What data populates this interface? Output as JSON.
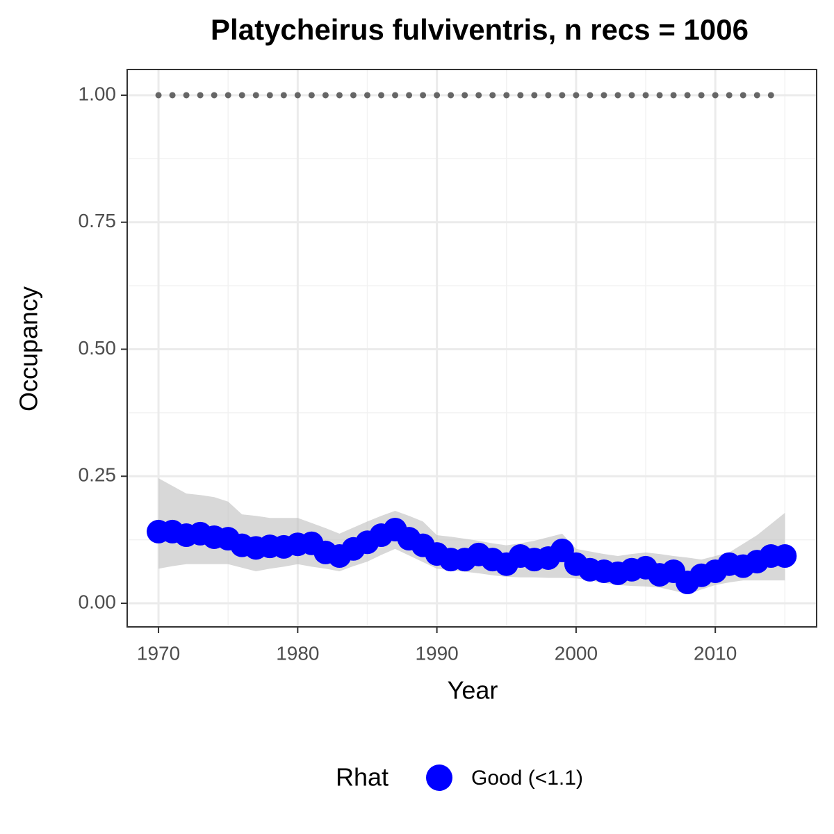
{
  "chart_data": {
    "type": "line",
    "title": "Platycheirus fulviventris, n recs = 1006",
    "x_label": "Year",
    "y_label": "Occupancy",
    "legend_title": "Rhat",
    "x": [
      1970,
      1971,
      1972,
      1973,
      1974,
      1975,
      1976,
      1977,
      1978,
      1979,
      1980,
      1981,
      1982,
      1983,
      1984,
      1985,
      1986,
      1987,
      1988,
      1989,
      1990,
      1991,
      1992,
      1993,
      1994,
      1995,
      1996,
      1997,
      1998,
      1999,
      2000,
      2001,
      2002,
      2003,
      2004,
      2005,
      2006,
      2007,
      2008,
      2009,
      2010,
      2011,
      2012,
      2013,
      2014,
      2015
    ],
    "series": [
      {
        "name": "Good (<1.1)",
        "color": "#0000ff",
        "values": [
          0.141,
          0.141,
          0.134,
          0.137,
          0.13,
          0.127,
          0.114,
          0.109,
          0.112,
          0.111,
          0.116,
          0.118,
          0.1,
          0.093,
          0.107,
          0.12,
          0.134,
          0.145,
          0.127,
          0.114,
          0.097,
          0.086,
          0.086,
          0.096,
          0.086,
          0.077,
          0.093,
          0.086,
          0.089,
          0.104,
          0.077,
          0.066,
          0.063,
          0.059,
          0.066,
          0.07,
          0.056,
          0.063,
          0.041,
          0.055,
          0.063,
          0.077,
          0.073,
          0.082,
          0.093,
          0.093
        ],
        "lower": [
          0.068,
          0.073,
          0.077,
          0.077,
          0.077,
          0.077,
          0.07,
          0.063,
          0.068,
          0.072,
          0.077,
          0.072,
          0.068,
          0.063,
          0.073,
          0.082,
          0.095,
          0.107,
          0.094,
          0.081,
          0.068,
          0.065,
          0.062,
          0.059,
          0.055,
          0.052,
          0.051,
          0.051,
          0.05,
          0.05,
          0.049,
          0.045,
          0.04,
          0.036,
          0.034,
          0.033,
          0.031,
          0.025,
          0.018,
          0.027,
          0.036,
          0.041,
          0.045,
          0.045,
          0.045,
          0.045
        ],
        "upper": [
          0.246,
          0.231,
          0.216,
          0.213,
          0.209,
          0.2,
          0.175,
          0.172,
          0.168,
          0.168,
          0.168,
          0.158,
          0.148,
          0.137,
          0.149,
          0.161,
          0.172,
          0.182,
          0.172,
          0.161,
          0.134,
          0.131,
          0.127,
          0.123,
          0.118,
          0.114,
          0.118,
          0.123,
          0.13,
          0.137,
          0.107,
          0.102,
          0.097,
          0.093,
          0.097,
          0.1,
          0.097,
          0.093,
          0.09,
          0.086,
          0.093,
          0.1,
          0.117,
          0.134,
          0.156,
          0.178
        ],
        "ribbon_color": "#bebebe"
      }
    ],
    "reference": {
      "color": "#666666",
      "x": [
        1970,
        1971,
        1972,
        1973,
        1974,
        1975,
        1976,
        1977,
        1978,
        1979,
        1980,
        1981,
        1982,
        1983,
        1984,
        1985,
        1986,
        1987,
        1988,
        1989,
        1990,
        1991,
        1992,
        1993,
        1994,
        1995,
        1996,
        1997,
        1998,
        1999,
        2000,
        2001,
        2002,
        2003,
        2004,
        2005,
        2006,
        2007,
        2008,
        2009,
        2010,
        2011,
        2012,
        2013,
        2014
      ],
      "values": [
        1,
        1,
        1,
        1,
        1,
        1,
        1,
        1,
        1,
        1,
        1,
        1,
        1,
        1,
        1,
        1,
        1,
        1,
        1,
        1,
        1,
        1,
        1,
        1,
        1,
        1,
        1,
        1,
        1,
        1,
        1,
        1,
        1,
        1,
        1,
        1,
        1,
        1,
        1,
        1,
        1,
        1,
        1,
        1,
        1
      ]
    },
    "xlim": [
      1967.75,
      2017.28
    ],
    "ylim": [
      -0.0465,
      1.0506
    ],
    "xticks": [
      1970,
      1980,
      1990,
      2000,
      2010
    ],
    "yticks": [
      {
        "value": 0,
        "label": "0.00"
      },
      {
        "value": 0.25,
        "label": "0.25"
      },
      {
        "value": 0.5,
        "label": "0.50"
      },
      {
        "value": 0.75,
        "label": "0.75"
      },
      {
        "value": 1,
        "label": "1.00"
      }
    ],
    "x_minor_ticks": [
      1975,
      1985,
      1995,
      2005,
      2015
    ],
    "y_minor_ticks": [
      0.125,
      0.375,
      0.625,
      0.875
    ],
    "grid": true
  }
}
